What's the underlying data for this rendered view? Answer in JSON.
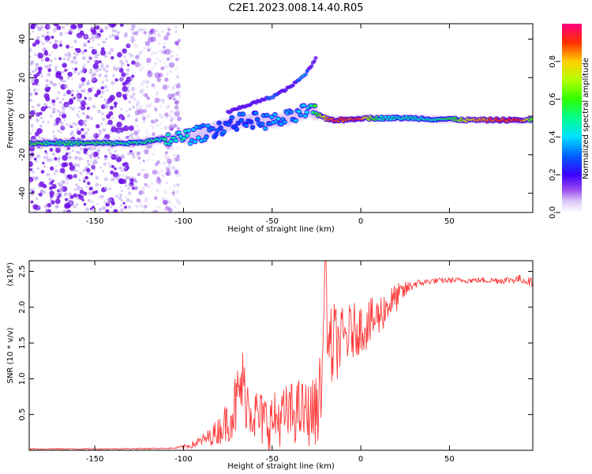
{
  "title": "C2E1.2023.008.14.40.R05",
  "colors": {
    "signal": "#ff3b3b",
    "axis": "#000000",
    "weak_dots": "#b89af0",
    "strong_dots": "#6f10e6"
  },
  "chart_data": [
    {
      "type": "heatmap",
      "name": "spectrogram",
      "xlabel": "Height of straight line (km)",
      "ylabel": "Frequency (Hz)",
      "xlim": [
        -187,
        97
      ],
      "ylim": [
        -50,
        48
      ],
      "xticks": [
        -150,
        -100,
        -50,
        0,
        50
      ],
      "xtick_labels": [
        "-150",
        "-100",
        "-50",
        "0",
        "50"
      ],
      "yticks": [
        -40,
        -20,
        0,
        20,
        40
      ],
      "ytick_labels": [
        "-40",
        "-20",
        "0",
        "20",
        "40"
      ],
      "colorbar": {
        "label": "Normalized spectral amplitude",
        "ticks": [
          0.0,
          0.2,
          0.4,
          0.6,
          0.8
        ],
        "tick_labels": [
          "0.0",
          "0.2",
          "0.4",
          "0.6",
          "0.8"
        ],
        "range": [
          0,
          1
        ]
      },
      "main_line": {
        "x": [
          -187,
          -170,
          -150,
          -130,
          -110,
          -100,
          -90,
          -80,
          -70,
          -60,
          -50,
          -40,
          -30,
          -25,
          -20,
          -15,
          -10,
          0,
          10,
          20,
          30,
          40,
          50,
          60,
          70,
          80,
          90,
          97
        ],
        "y": [
          -14,
          -14,
          -14,
          -14,
          -12,
          -11,
          -9,
          -6,
          -3,
          -2,
          -3,
          -1,
          3,
          1,
          -1,
          -2,
          -2,
          -1,
          -1,
          -1,
          -1,
          -1.5,
          -1.5,
          -2,
          -2,
          -2,
          -2,
          -2
        ],
        "amplitude": [
          0.6,
          0.5,
          0.55,
          0.5,
          0.5,
          0.45,
          0.35,
          0.3,
          0.3,
          0.3,
          0.35,
          0.35,
          0.4,
          0.6,
          0.8,
          0.9,
          0.9,
          0.9,
          0.5,
          0.45,
          0.45,
          0.45,
          0.55,
          0.75,
          0.85,
          0.9,
          0.9,
          0.6
        ]
      },
      "upper_branch": {
        "x": [
          -75,
          -60,
          -50,
          -40,
          -32,
          -28,
          -25
        ],
        "y": [
          2,
          7,
          10,
          15,
          21,
          26,
          31
        ],
        "amplitude": [
          0.15,
          0.2,
          0.35,
          0.2,
          0.4,
          0.2,
          0.2
        ]
      },
      "noise_region": [
        -187,
        -108
      ]
    },
    {
      "type": "line",
      "name": "snr",
      "xlabel": "Height of straight line (km)",
      "ylabel": "SNR (10 * v/v)",
      "ylabel_exponent": "(x10⁴)",
      "xlim": [
        -187,
        97
      ],
      "ylim": [
        0,
        2.65
      ],
      "xticks": [
        -150,
        -100,
        -50,
        0,
        50
      ],
      "xtick_labels": [
        "-150",
        "-100",
        "-50",
        "0",
        "50"
      ],
      "yticks": [
        0.5,
        1.0,
        1.5,
        2.0,
        2.5
      ],
      "ytick_labels": [
        "0.5",
        "1.0",
        "1.5",
        "2.0",
        "2.5"
      ],
      "envelope": {
        "x": [
          -187,
          -150,
          -120,
          -105,
          -100,
          -95,
          -90,
          -85,
          -80,
          -75,
          -70,
          -67,
          -65,
          -60,
          -55,
          -50,
          -45,
          -40,
          -35,
          -30,
          -25,
          -22,
          -20,
          -18,
          -15,
          -12,
          -10,
          -5,
          0,
          5,
          10,
          15,
          20,
          25,
          30,
          40,
          50,
          60,
          70,
          80,
          90,
          97
        ],
        "y": [
          0.02,
          0.02,
          0.025,
          0.03,
          0.05,
          0.08,
          0.14,
          0.2,
          0.3,
          0.45,
          0.7,
          1.0,
          0.8,
          0.55,
          0.45,
          0.45,
          0.5,
          0.55,
          0.6,
          0.55,
          0.6,
          1.0,
          2.35,
          1.4,
          1.55,
          1.55,
          1.6,
          1.7,
          1.75,
          1.8,
          1.9,
          2.05,
          2.15,
          2.25,
          2.33,
          2.37,
          2.38,
          2.38,
          2.38,
          2.38,
          2.4,
          2.35
        ],
        "noise": [
          0.01,
          0.01,
          0.01,
          0.01,
          0.03,
          0.05,
          0.08,
          0.12,
          0.2,
          0.3,
          0.5,
          0.55,
          0.45,
          0.4,
          0.4,
          0.4,
          0.4,
          0.45,
          0.45,
          0.45,
          0.5,
          0.6,
          0.5,
          0.6,
          0.6,
          0.45,
          0.45,
          0.4,
          0.35,
          0.35,
          0.3,
          0.25,
          0.2,
          0.12,
          0.06,
          0.04,
          0.04,
          0.04,
          0.04,
          0.05,
          0.06,
          0.06
        ]
      },
      "peak": {
        "x": -20,
        "y": 2.65
      }
    }
  ]
}
